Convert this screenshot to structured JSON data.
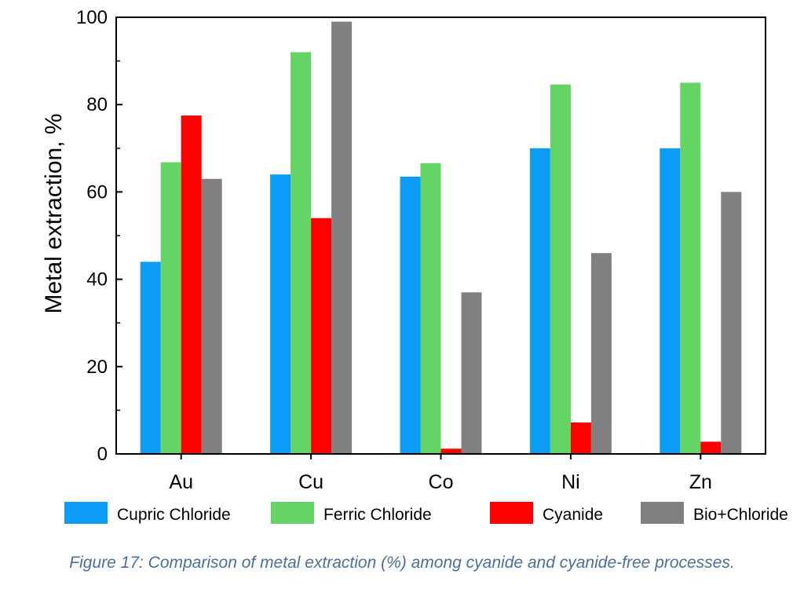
{
  "chart_data": {
    "type": "bar",
    "categories": [
      "Au",
      "Cu",
      "Co",
      "Ni",
      "Zn"
    ],
    "series": [
      {
        "name": "Cupric Chloride",
        "color": "#0d9cf5",
        "values": [
          44,
          64,
          63.5,
          70,
          70
        ]
      },
      {
        "name": "Ferric Chloride",
        "color": "#64d464",
        "values": [
          66.8,
          92,
          66.6,
          84.6,
          85
        ]
      },
      {
        "name": "Cyanide",
        "color": "#ff0000",
        "values": [
          77.5,
          54,
          1.2,
          7.2,
          2.8
        ]
      },
      {
        "name": "Bio+Chloride",
        "color": "#808080",
        "values": [
          63,
          99,
          37,
          46,
          60
        ]
      }
    ],
    "ylabel": "Metal extraction, %",
    "xlabel": "",
    "ylim": [
      0,
      100
    ],
    "yticks": [
      "0",
      "20",
      "40",
      "60",
      "80",
      "100"
    ],
    "grid": false,
    "legend_position": "bottom"
  },
  "caption": "Figure 17: Comparison of metal extraction (%) among cyanide and cyanide-free processes."
}
